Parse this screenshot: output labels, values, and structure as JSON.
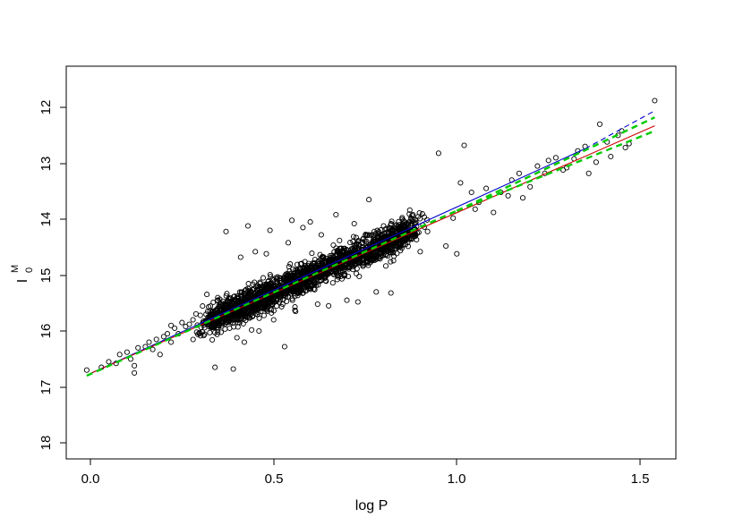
{
  "chart_data": {
    "type": "scatter",
    "title": "",
    "xlabel": "log P",
    "ylabel": {
      "base": "I",
      "superscript": "M",
      "subscript": "0"
    },
    "xlim": [
      -0.07,
      1.6
    ],
    "ylim": [
      18.2,
      11.25
    ],
    "y_reversed": true,
    "grid": false,
    "legend": "none",
    "x_ticks": [
      {
        "value": 0.0,
        "label": "0.0"
      },
      {
        "value": 0.5,
        "label": "0.5"
      },
      {
        "value": 1.0,
        "label": "1.0"
      },
      {
        "value": 1.5,
        "label": "1.5"
      }
    ],
    "y_ticks": [
      {
        "value": 12,
        "label": "12"
      },
      {
        "value": 13,
        "label": "13"
      },
      {
        "value": 14,
        "label": "14"
      },
      {
        "value": 15,
        "label": "15"
      },
      {
        "value": 16,
        "label": "16"
      },
      {
        "value": 17,
        "label": "17"
      },
      {
        "value": 18,
        "label": "18"
      }
    ],
    "points": [
      [
        -0.01,
        16.7
      ],
      [
        0.03,
        16.65
      ],
      [
        0.05,
        16.55
      ],
      [
        0.07,
        16.58
      ],
      [
        0.08,
        16.42
      ],
      [
        0.1,
        16.38
      ],
      [
        0.11,
        16.5
      ],
      [
        0.12,
        16.62
      ],
      [
        0.12,
        16.75
      ],
      [
        0.13,
        16.3
      ],
      [
        0.15,
        16.28
      ],
      [
        0.16,
        16.2
      ],
      [
        0.17,
        16.33
      ],
      [
        0.18,
        16.15
      ],
      [
        0.19,
        16.42
      ],
      [
        0.2,
        16.1
      ],
      [
        0.21,
        16.05
      ],
      [
        0.22,
        16.2
      ],
      [
        0.22,
        15.9
      ],
      [
        0.23,
        15.95
      ],
      [
        0.24,
        16.05
      ],
      [
        0.25,
        15.85
      ],
      [
        0.26,
        15.92
      ],
      [
        0.27,
        15.88
      ],
      [
        0.28,
        15.8
      ],
      [
        0.29,
        16.02
      ],
      [
        0.3,
        15.72
      ],
      [
        0.31,
        15.85
      ],
      [
        0.32,
        15.65
      ],
      [
        0.33,
        15.7
      ],
      [
        0.34,
        16.65
      ],
      [
        0.37,
        14.22
      ],
      [
        0.39,
        16.68
      ],
      [
        0.43,
        14.12
      ],
      [
        0.38,
        15.95
      ],
      [
        0.4,
        16.12
      ],
      [
        0.41,
        14.68
      ],
      [
        0.45,
        14.58
      ],
      [
        0.42,
        16.2
      ],
      [
        0.44,
        15.98
      ],
      [
        0.46,
        16.0
      ],
      [
        0.48,
        14.62
      ],
      [
        0.49,
        14.2
      ],
      [
        0.5,
        15.8
      ],
      [
        0.53,
        16.28
      ],
      [
        0.54,
        14.42
      ],
      [
        0.55,
        14.02
      ],
      [
        0.56,
        15.65
      ],
      [
        0.58,
        14.15
      ],
      [
        0.6,
        14.05
      ],
      [
        0.62,
        15.52
      ],
      [
        0.63,
        14.28
      ],
      [
        0.65,
        15.55
      ],
      [
        0.67,
        13.92
      ],
      [
        0.68,
        14.38
      ],
      [
        0.7,
        15.45
      ],
      [
        0.72,
        14.08
      ],
      [
        0.73,
        15.48
      ],
      [
        0.76,
        13.65
      ],
      [
        0.78,
        15.3
      ],
      [
        0.8,
        14.12
      ],
      [
        0.82,
        15.32
      ],
      [
        0.85,
        14.52
      ],
      [
        0.88,
        13.92
      ],
      [
        0.9,
        14.58
      ],
      [
        0.92,
        14.22
      ],
      [
        0.95,
        12.82
      ],
      [
        0.97,
        14.48
      ],
      [
        0.99,
        13.98
      ],
      [
        1.0,
        14.62
      ],
      [
        1.01,
        13.35
      ],
      [
        1.02,
        12.68
      ],
      [
        1.04,
        13.52
      ],
      [
        1.05,
        13.82
      ],
      [
        1.06,
        13.7
      ],
      [
        1.08,
        13.45
      ],
      [
        1.1,
        13.88
      ],
      [
        1.12,
        13.52
      ],
      [
        1.14,
        13.58
      ],
      [
        1.15,
        13.3
      ],
      [
        1.17,
        13.18
      ],
      [
        1.18,
        13.62
      ],
      [
        1.2,
        13.42
      ],
      [
        1.22,
        13.05
      ],
      [
        1.24,
        13.18
      ],
      [
        1.25,
        12.95
      ],
      [
        1.27,
        12.9
      ],
      [
        1.29,
        13.12
      ],
      [
        1.3,
        13.08
      ],
      [
        1.32,
        12.92
      ],
      [
        1.33,
        12.78
      ],
      [
        1.35,
        12.7
      ],
      [
        1.36,
        13.18
      ],
      [
        1.38,
        12.98
      ],
      [
        1.39,
        12.3
      ],
      [
        1.41,
        12.62
      ],
      [
        1.42,
        12.88
      ],
      [
        1.44,
        12.5
      ],
      [
        1.45,
        12.42
      ],
      [
        1.46,
        12.72
      ],
      [
        1.47,
        12.65
      ],
      [
        1.54,
        11.88
      ]
    ],
    "point_cloud": {
      "x_min": 0.33,
      "x_max": 0.88,
      "count": 2200,
      "scatter_sd": 0.13
    },
    "fit_lines": [
      {
        "color": "#0000cc",
        "style": "solid",
        "x": [
          0.0,
          1.35
        ],
        "y": [
          16.76,
          12.74
        ]
      },
      {
        "color": "#0000cc",
        "style": "dashed",
        "x": [
          1.35,
          1.54
        ],
        "y": [
          12.74,
          12.06
        ]
      },
      {
        "color": "#cc0000",
        "style": "solid",
        "x": [
          0.0,
          1.54
        ],
        "y": [
          16.76,
          12.33
        ]
      },
      {
        "color": "#00cc00",
        "style": "dashed",
        "x": [
          1.0,
          1.54
        ],
        "y": [
          13.85,
          12.18
        ]
      },
      {
        "color": "#00cc00",
        "style": "dashed",
        "x": [
          1.0,
          1.54
        ],
        "y": [
          13.85,
          12.42
        ]
      },
      {
        "color": "#00cc00",
        "style": "dashed",
        "x": [
          -0.01,
          1.0
        ],
        "y": [
          16.8,
          13.85
        ]
      }
    ]
  }
}
